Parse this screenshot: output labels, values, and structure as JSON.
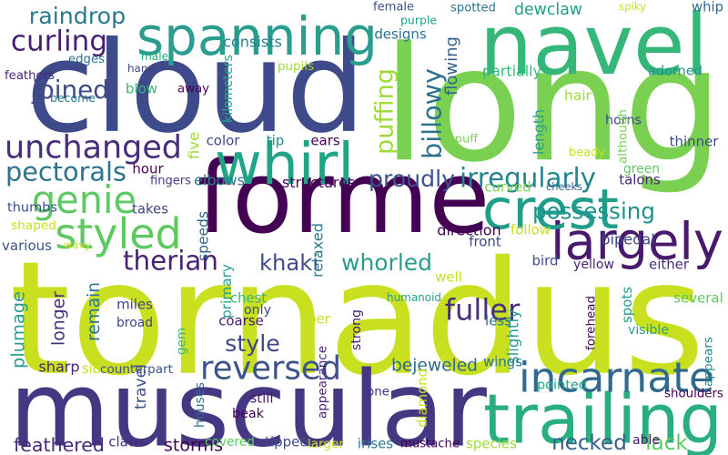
{
  "words": [
    {
      "text": "tornadus",
      "color": "#c8e020"
    },
    {
      "text": "long",
      "color": "#7ad151"
    },
    {
      "text": "cloud",
      "color": "#3e4a89"
    },
    {
      "text": "muscular",
      "color": "#453781"
    },
    {
      "text": "forme",
      "color": "#440154"
    },
    {
      "text": "navel",
      "color": "#35b779"
    },
    {
      "text": "spanning",
      "color": "#2a9d8e"
    },
    {
      "text": "whirl",
      "color": "#20a486"
    },
    {
      "text": "trailing",
      "color": "#29af7f"
    },
    {
      "text": "incarnate",
      "color": "#31688e"
    },
    {
      "text": "largely",
      "color": "#481a6c"
    },
    {
      "text": "crest",
      "color": "#1f9e89"
    },
    {
      "text": "unchanged",
      "color": "#472d7b"
    },
    {
      "text": "billowy",
      "color": "#2c728e"
    },
    {
      "text": "styled",
      "color": "#5ec962"
    },
    {
      "text": "genie",
      "color": "#5ec962"
    },
    {
      "text": "reversed",
      "color": "#3b528b"
    },
    {
      "text": "therian",
      "color": "#482173"
    },
    {
      "text": "puffing",
      "color": "#a0da39"
    },
    {
      "text": "pectorals",
      "color": "#2c728e"
    },
    {
      "text": "joined",
      "color": "#3e4a89"
    },
    {
      "text": "curling",
      "color": "#481f71"
    },
    {
      "text": "raindrop",
      "color": "#2a788e"
    },
    {
      "text": "proudly",
      "color": "#3b528b"
    },
    {
      "text": "irregularly",
      "color": "#25858e"
    },
    {
      "text": "fuller",
      "color": "#46307e"
    },
    {
      "text": "whorled",
      "color": "#2a9d8e"
    },
    {
      "text": "khaki",
      "color": "#3e4a89"
    },
    {
      "text": "possessing",
      "color": "#21918c"
    },
    {
      "text": "necked",
      "color": "#355f8d"
    },
    {
      "text": "lack",
      "color": "#5ec962"
    },
    {
      "text": "style",
      "color": "#414487"
    },
    {
      "text": "remain",
      "color": "#2c728e"
    },
    {
      "text": "plumage",
      "color": "#2a9d8e"
    },
    {
      "text": "bejeweled",
      "color": "#31688e"
    },
    {
      "text": "feathered",
      "color": "#482878"
    },
    {
      "text": "storms",
      "color": "#440154"
    },
    {
      "text": "dewclaw",
      "color": "#1f9e89"
    },
    {
      "text": "consists",
      "color": "#26828e"
    },
    {
      "text": "pupils",
      "color": "#a0da39"
    },
    {
      "text": "designs",
      "color": "#2d708e"
    },
    {
      "text": "feathers",
      "color": "#482475"
    },
    {
      "text": "edges",
      "color": "#2c728e"
    },
    {
      "text": "male",
      "color": "#22a884"
    },
    {
      "text": "hand",
      "color": "#414487"
    },
    {
      "text": "kilometers",
      "color": "#22a884"
    },
    {
      "text": "female",
      "color": "#3b528b"
    },
    {
      "text": "purple",
      "color": "#20a486"
    },
    {
      "text": "spotted",
      "color": "#2c728e"
    },
    {
      "text": "flowing",
      "color": "#355f8d"
    },
    {
      "text": "partially",
      "color": "#35b779"
    },
    {
      "text": "hair",
      "color": "#a0da39"
    },
    {
      "text": "horns",
      "color": "#3e4a89"
    },
    {
      "text": "adorned",
      "color": "#21918c"
    },
    {
      "text": "spiky",
      "color": "#c8e020"
    },
    {
      "text": "whip",
      "color": "#31688e"
    },
    {
      "text": "blow",
      "color": "#35b779"
    },
    {
      "text": "become",
      "color": "#2a788e"
    },
    {
      "text": "away",
      "color": "#440154"
    },
    {
      "text": "five",
      "color": "#a0da39"
    },
    {
      "text": "color",
      "color": "#3e4a89"
    },
    {
      "text": "tip",
      "color": "#23898e"
    },
    {
      "text": "ears",
      "color": "#440154"
    },
    {
      "text": "puff",
      "color": "#7ad151"
    },
    {
      "text": "length",
      "color": "#2a9d8e"
    },
    {
      "text": "although",
      "color": "#7ad151"
    },
    {
      "text": "thinner",
      "color": "#3e4a89"
    },
    {
      "text": "beady",
      "color": "#c8e020"
    },
    {
      "text": "hour",
      "color": "#440154"
    },
    {
      "text": "fingers",
      "color": "#443983"
    },
    {
      "text": "elbows",
      "color": "#2a788e"
    },
    {
      "text": "structures",
      "color": "#440154"
    },
    {
      "text": "cheeks",
      "color": "#355f8d"
    },
    {
      "text": "green",
      "color": "#5ec962"
    },
    {
      "text": "talons",
      "color": "#482878"
    },
    {
      "text": "curved",
      "color": "#7ad151"
    },
    {
      "text": "thumbs",
      "color": "#3e4a89"
    },
    {
      "text": "takes",
      "color": "#414487"
    },
    {
      "text": "speeds",
      "color": "#31688e"
    },
    {
      "text": "primary",
      "color": "#2a9d8e"
    },
    {
      "text": "shaped",
      "color": "#c8e020"
    },
    {
      "text": "various",
      "color": "#3b528b"
    },
    {
      "text": "wavy",
      "color": "#c8e020"
    },
    {
      "text": "direction",
      "color": "#440154"
    },
    {
      "text": "front",
      "color": "#414487"
    },
    {
      "text": "follow",
      "color": "#c8e020"
    },
    {
      "text": "bird",
      "color": "#3e4a89"
    },
    {
      "text": "yellow",
      "color": "#482475"
    },
    {
      "text": "either",
      "color": "#472d7b"
    },
    {
      "text": "bipedal",
      "color": "#3e4a89"
    },
    {
      "text": "relaxed",
      "color": "#2a788e"
    },
    {
      "text": "well",
      "color": "#c8e020"
    },
    {
      "text": "chest",
      "color": "#35b779"
    },
    {
      "text": "humanoid",
      "color": "#2a9d8e"
    },
    {
      "text": "only",
      "color": "#3e4a89"
    },
    {
      "text": "coarse",
      "color": "#481a6c"
    },
    {
      "text": "per",
      "color": "#c8e020"
    },
    {
      "text": "less",
      "color": "#2c728e"
    },
    {
      "text": "slightly",
      "color": "#2a9d8e"
    },
    {
      "text": "spots",
      "color": "#1f9e89"
    },
    {
      "text": "forehead",
      "color": "#440154"
    },
    {
      "text": "several",
      "color": "#5ec962"
    },
    {
      "text": "visible",
      "color": "#2a9d8e"
    },
    {
      "text": "appears",
      "color": "#25858e"
    },
    {
      "text": "longer",
      "color": "#46307e"
    },
    {
      "text": "miles",
      "color": "#414487"
    },
    {
      "text": "broad",
      "color": "#404688"
    },
    {
      "text": "gem",
      "color": "#35b779"
    },
    {
      "text": "sharp",
      "color": "#482878"
    },
    {
      "text": "side",
      "color": "#c8e020"
    },
    {
      "text": "counterpart",
      "color": "#3b528b"
    },
    {
      "text": "appearance",
      "color": "#482475"
    },
    {
      "text": "strong",
      "color": "#481a6c"
    },
    {
      "text": "wings",
      "color": "#2a788e"
    },
    {
      "text": "diamond",
      "color": "#c8e020"
    },
    {
      "text": "one",
      "color": "#472d7b"
    },
    {
      "text": "pointed",
      "color": "#20a486"
    },
    {
      "text": "shoulders",
      "color": "#440154"
    },
    {
      "text": "still",
      "color": "#481a6c"
    },
    {
      "text": "beak",
      "color": "#440154"
    },
    {
      "text": "travel",
      "color": "#3b528b"
    },
    {
      "text": "houses",
      "color": "#2c728e"
    },
    {
      "text": "claws",
      "color": "#46307e"
    },
    {
      "text": "covered",
      "color": "#5ec962"
    },
    {
      "text": "tipped",
      "color": "#3e4a89"
    },
    {
      "text": "larger",
      "color": "#c8e020"
    },
    {
      "text": "irises",
      "color": "#2a788e"
    },
    {
      "text": "mustache",
      "color": "#440154"
    },
    {
      "text": "species",
      "color": "#a0da39"
    },
    {
      "text": "able",
      "color": "#481a6c"
    }
  ]
}
